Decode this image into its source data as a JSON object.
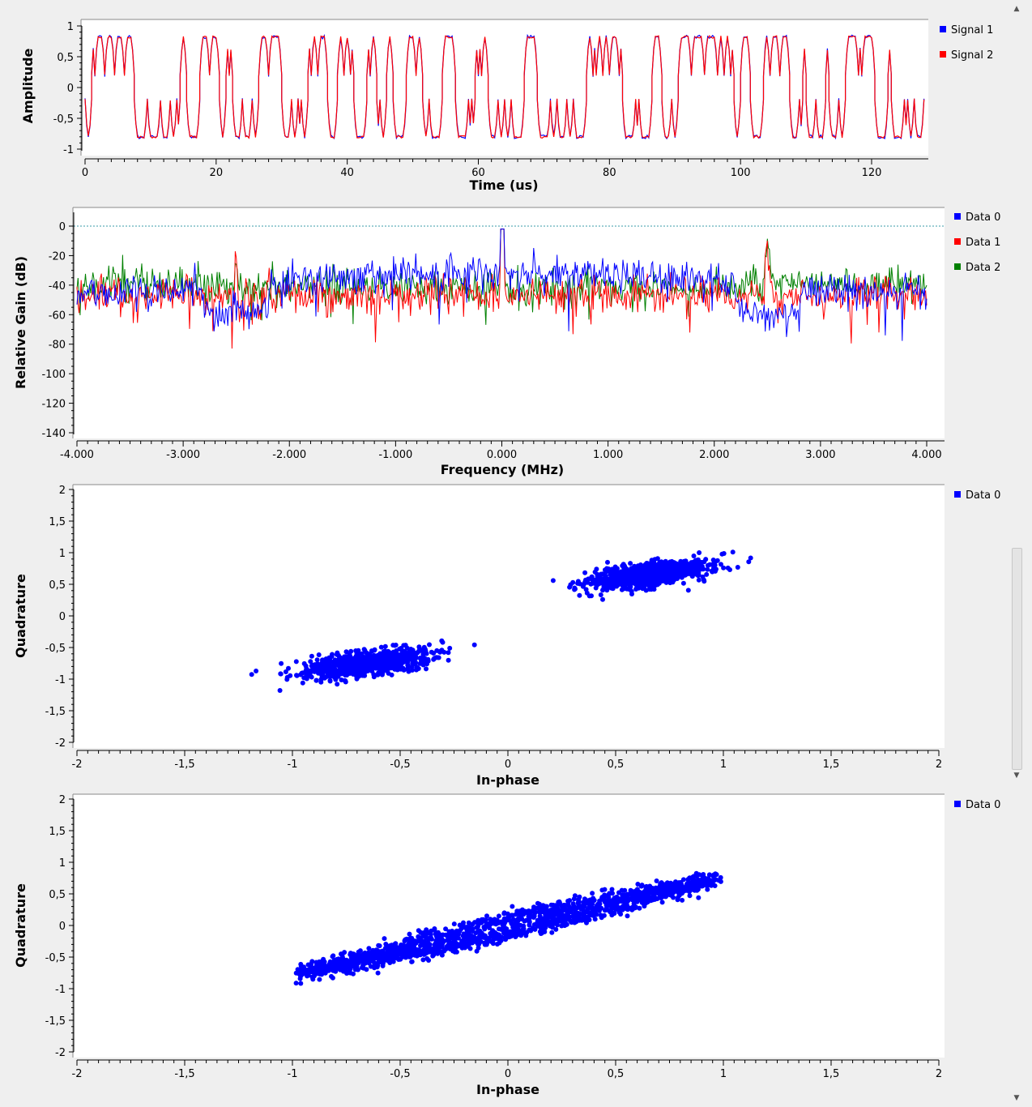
{
  "charts": {
    "time": {
      "xlabel": "Time (us)",
      "ylabel": "Amplitude",
      "xticks": [
        "0",
        "20",
        "40",
        "60",
        "80",
        "100",
        "120"
      ],
      "yticks": [
        "1",
        "0,5",
        "0",
        "-0,5",
        "-1"
      ],
      "legend": [
        {
          "name": "Signal 1",
          "color": "#0000ff"
        },
        {
          "name": "Signal 2",
          "color": "#ff0000"
        }
      ]
    },
    "freq": {
      "xlabel": "Frequency (MHz)",
      "ylabel": "Relative Gain (dB)",
      "xticks": [
        "-4.000",
        "-3.000",
        "-2.000",
        "-1.000",
        "0.000",
        "1.000",
        "2.000",
        "3.000",
        "4.000"
      ],
      "yticks": [
        "0",
        "-20",
        "-40",
        "-60",
        "-80",
        "-100",
        "-120",
        "-140"
      ],
      "legend": [
        {
          "name": "Data 0",
          "color": "#0000ff"
        },
        {
          "name": "Data 1",
          "color": "#ff0000"
        },
        {
          "name": "Data 2",
          "color": "#008000"
        }
      ]
    },
    "const1": {
      "xlabel": "In-phase",
      "ylabel": "Quadrature",
      "xticks": [
        "-2",
        "-1,5",
        "-1",
        "-0,5",
        "0",
        "0,5",
        "1",
        "1,5",
        "2"
      ],
      "yticks": [
        "2",
        "1,5",
        "1",
        "0,5",
        "0",
        "-0,5",
        "-1",
        "-1,5",
        "-2"
      ],
      "legend": [
        {
          "name": "Data 0",
          "color": "#0000ff"
        }
      ]
    },
    "const2": {
      "xlabel": "In-phase",
      "ylabel": "Quadrature",
      "xticks": [
        "-2",
        "-1,5",
        "-1",
        "-0,5",
        "0",
        "0,5",
        "1",
        "1,5",
        "2"
      ],
      "yticks": [
        "2",
        "1,5",
        "1",
        "0,5",
        "0",
        "-0,5",
        "-1",
        "-1,5",
        "-2"
      ],
      "legend": [
        {
          "name": "Data 0",
          "color": "#0000ff"
        }
      ]
    }
  },
  "chart_data": [
    {
      "type": "line",
      "xlabel": "Time (us)",
      "ylabel": "Amplitude",
      "xlim": [
        0,
        128
      ],
      "ylim": [
        -1,
        1
      ],
      "series": [
        {
          "name": "Signal 1",
          "levels": [
            -0.8,
            0.82
          ]
        },
        {
          "name": "Signal 2",
          "levels": [
            -0.8,
            0.82
          ]
        }
      ]
    },
    {
      "type": "line",
      "xlabel": "Frequency (MHz)",
      "ylabel": "Relative Gain (dB)",
      "xlim": [
        -4,
        4
      ],
      "ylim": [
        -140,
        10
      ],
      "reference_line": 0,
      "series": [
        {
          "name": "Data 0",
          "peaks": [
            {
              "x": 0.0,
              "y": 0
            }
          ]
        },
        {
          "name": "Data 1",
          "peaks": [
            {
              "x": 0.0,
              "y": 0
            },
            {
              "x": -2.5,
              "y": -17
            },
            {
              "x": 2.5,
              "y": -18
            }
          ]
        },
        {
          "name": "Data 2",
          "peaks": [
            {
              "x": 0.0,
              "y": 0
            },
            {
              "x": -2.5,
              "y": -17
            },
            {
              "x": 2.5,
              "y": -18
            }
          ]
        }
      ]
    },
    {
      "type": "scatter",
      "xlabel": "In-phase",
      "ylabel": "Quadrature",
      "xlim": [
        -2,
        2
      ],
      "ylim": [
        -2,
        2
      ],
      "series": [
        {
          "name": "Data 0",
          "clusters": [
            {
              "center": [
                -0.65,
                -0.75
              ],
              "spread": [
                0.14,
                0.09
              ]
            },
            {
              "center": [
                0.65,
                0.65
              ],
              "spread": [
                0.14,
                0.09
              ]
            }
          ]
        }
      ]
    },
    {
      "type": "scatter",
      "xlabel": "In-phase",
      "ylabel": "Quadrature",
      "xlim": [
        -2,
        2
      ],
      "ylim": [
        -2,
        2
      ],
      "series": [
        {
          "name": "Data 0",
          "band": {
            "from": [
              -0.95,
              -0.75
            ],
            "to": [
              0.95,
              0.72
            ],
            "width": 0.12
          }
        }
      ]
    }
  ]
}
